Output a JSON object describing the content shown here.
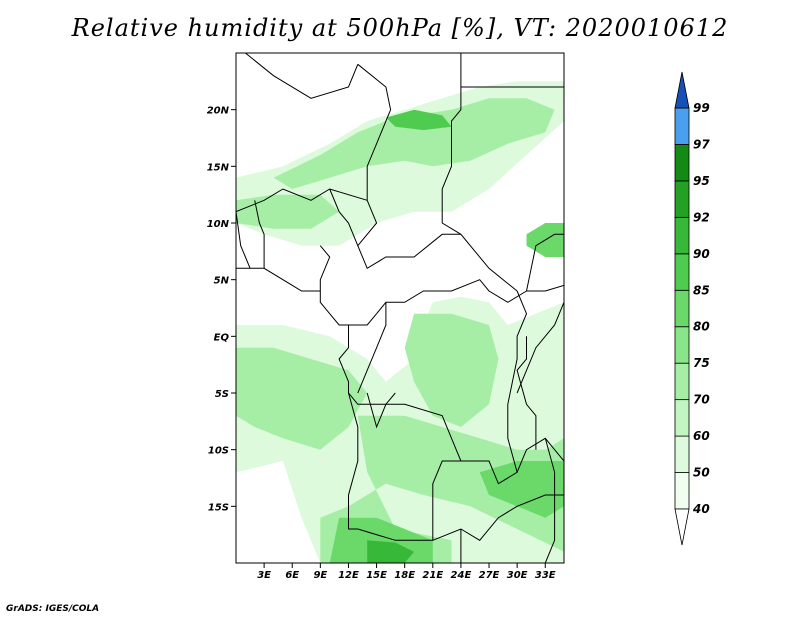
{
  "title": "Relative humidity at 500hPa [%], VT: 2020010612",
  "credit": "GrADS: IGES/COLA",
  "chart_data": {
    "type": "heatmap",
    "title": "Relative humidity at 500hPa [%], VT: 2020010612",
    "x_axis": {
      "range": [
        0,
        35
      ],
      "ticks": [
        3,
        6,
        9,
        12,
        15,
        18,
        21,
        24,
        27,
        30,
        33
      ],
      "tick_labels": [
        "3E",
        "6E",
        "9E",
        "12E",
        "15E",
        "18E",
        "21E",
        "24E",
        "27E",
        "30E",
        "33E"
      ]
    },
    "y_axis": {
      "range": [
        -20,
        25
      ],
      "ticks": [
        20,
        15,
        10,
        5,
        0,
        -5,
        -10,
        -15
      ],
      "tick_labels": [
        "20N",
        "15N",
        "10N",
        "5N",
        "EQ",
        "5S",
        "10S",
        "15S"
      ]
    },
    "colorbar": {
      "levels": [
        40,
        50,
        60,
        70,
        75,
        80,
        85,
        90,
        92,
        95,
        97,
        99
      ],
      "labels": [
        "40",
        "50",
        "60",
        "70",
        "75",
        "80",
        "85",
        "90",
        "92",
        "95",
        "97",
        "99"
      ],
      "colors": [
        "#f0fef0",
        "#ddfadd",
        "#c2f5c2",
        "#a6eea6",
        "#88e688",
        "#6ad96a",
        "#4fcc4f",
        "#38b838",
        "#24a024",
        "#138a13",
        "#4aa0ef",
        "#1e6fd6",
        "#1650b5"
      ],
      "under_color": "#ffffff"
    },
    "regions": [
      {
        "level": 50,
        "points": [
          [
            0,
            14
          ],
          [
            5,
            15
          ],
          [
            10,
            17
          ],
          [
            14,
            19
          ],
          [
            18,
            20
          ],
          [
            22,
            21
          ],
          [
            26,
            22
          ],
          [
            30,
            22.5
          ],
          [
            35,
            22.5
          ],
          [
            35,
            19
          ],
          [
            31,
            16
          ],
          [
            27,
            13
          ],
          [
            23,
            11
          ],
          [
            19,
            11
          ],
          [
            15,
            10
          ],
          [
            11,
            8
          ],
          [
            7,
            8
          ],
          [
            3,
            9
          ],
          [
            0,
            10
          ]
        ]
      },
      {
        "level": 70,
        "points": [
          [
            4,
            14
          ],
          [
            9,
            16
          ],
          [
            13,
            18
          ],
          [
            16,
            19
          ],
          [
            19,
            19.5
          ],
          [
            23,
            20
          ],
          [
            27,
            21
          ],
          [
            31,
            21
          ],
          [
            34,
            20
          ],
          [
            33,
            18
          ],
          [
            29,
            17
          ],
          [
            25,
            15.5
          ],
          [
            21,
            15
          ],
          [
            18,
            15.5
          ],
          [
            14,
            15
          ],
          [
            10,
            14
          ],
          [
            6,
            13
          ]
        ]
      },
      {
        "level": 85,
        "points": [
          [
            16,
            19.3
          ],
          [
            19,
            20
          ],
          [
            22,
            19.5
          ],
          [
            23,
            18.5
          ],
          [
            20,
            18.2
          ],
          [
            17,
            18.5
          ]
        ]
      },
      {
        "level": 70,
        "points": [
          [
            0,
            12
          ],
          [
            4,
            12.5
          ],
          [
            9,
            12.5
          ],
          [
            11,
            11
          ],
          [
            8,
            9.5
          ],
          [
            4,
            9.5
          ],
          [
            0,
            10
          ]
        ]
      },
      {
        "level": 80,
        "points": [
          [
            31,
            9
          ],
          [
            33,
            10
          ],
          [
            35,
            10
          ],
          [
            35,
            7
          ],
          [
            33,
            7
          ],
          [
            31,
            8
          ]
        ]
      },
      {
        "level": 50,
        "points": [
          [
            0,
            1
          ],
          [
            5,
            1
          ],
          [
            10,
            0
          ],
          [
            14,
            -2
          ],
          [
            16,
            -4
          ],
          [
            19,
            -2
          ],
          [
            20,
            1
          ],
          [
            21,
            3
          ],
          [
            24,
            3.5
          ],
          [
            27,
            3
          ],
          [
            29,
            1
          ],
          [
            32,
            2
          ],
          [
            35,
            3
          ],
          [
            35,
            -20
          ],
          [
            9,
            -20
          ],
          [
            7,
            -16
          ],
          [
            5,
            -11
          ],
          [
            0,
            -12
          ]
        ]
      },
      {
        "level": 70,
        "points": [
          [
            0,
            -1
          ],
          [
            4,
            -1
          ],
          [
            8,
            -2
          ],
          [
            12,
            -3
          ],
          [
            14,
            -5
          ],
          [
            12,
            -8
          ],
          [
            9,
            -10
          ],
          [
            5,
            -9
          ],
          [
            2,
            -8
          ],
          [
            0,
            -7
          ]
        ]
      },
      {
        "level": 70,
        "points": [
          [
            19,
            2
          ],
          [
            23,
            2
          ],
          [
            27,
            1
          ],
          [
            28,
            -2
          ],
          [
            27,
            -6
          ],
          [
            24,
            -8
          ],
          [
            21,
            -7
          ],
          [
            19,
            -4
          ],
          [
            18,
            -1
          ]
        ]
      },
      {
        "level": 70,
        "points": [
          [
            13,
            -7
          ],
          [
            18,
            -7
          ],
          [
            22,
            -8
          ],
          [
            26,
            -9
          ],
          [
            30,
            -10
          ],
          [
            33,
            -10
          ],
          [
            35,
            -9
          ],
          [
            35,
            -19
          ],
          [
            30,
            -17
          ],
          [
            25,
            -15
          ],
          [
            20,
            -14
          ],
          [
            16,
            -13
          ],
          [
            12,
            -15
          ],
          [
            9,
            -16
          ],
          [
            9,
            -20
          ],
          [
            23,
            -20
          ],
          [
            23,
            -18
          ],
          [
            17,
            -17
          ],
          [
            14,
            -12
          ]
        ]
      },
      {
        "level": 80,
        "points": [
          [
            26,
            -12
          ],
          [
            30,
            -11
          ],
          [
            33,
            -11
          ],
          [
            35,
            -11
          ],
          [
            35,
            -15
          ],
          [
            33,
            -16
          ],
          [
            30,
            -15
          ],
          [
            27,
            -14
          ]
        ]
      },
      {
        "level": 80,
        "points": [
          [
            11,
            -16
          ],
          [
            15,
            -16
          ],
          [
            18,
            -17
          ],
          [
            21,
            -18
          ],
          [
            21,
            -20
          ],
          [
            10,
            -20
          ]
        ]
      },
      {
        "level": 90,
        "points": [
          [
            14,
            -18
          ],
          [
            17,
            -18.2
          ],
          [
            19,
            -19
          ],
          [
            18,
            -20
          ],
          [
            14,
            -20
          ]
        ]
      }
    ],
    "boundaries": [
      [
        [
          1,
          25
        ],
        [
          4,
          23
        ],
        [
          8,
          21
        ],
        [
          12,
          22
        ],
        [
          13,
          24
        ]
      ],
      [
        [
          13,
          24
        ],
        [
          16,
          22
        ],
        [
          16.5,
          20
        ],
        [
          15,
          17
        ],
        [
          14,
          15
        ],
        [
          14,
          12
        ]
      ],
      [
        [
          24,
          25
        ],
        [
          24,
          20
        ],
        [
          23,
          19
        ],
        [
          23,
          15
        ],
        [
          22,
          13
        ],
        [
          22,
          10
        ],
        [
          24,
          9
        ],
        [
          27,
          6
        ],
        [
          30,
          4
        ]
      ],
      [
        [
          24,
          25
        ],
        [
          35,
          25
        ]
      ],
      [
        [
          24,
          22
        ],
        [
          35,
          22
        ]
      ],
      [
        [
          0,
          11
        ],
        [
          3,
          12
        ],
        [
          5,
          13
        ],
        [
          8,
          12
        ],
        [
          10,
          13
        ],
        [
          14,
          12
        ]
      ],
      [
        [
          14,
          12
        ],
        [
          15,
          10
        ],
        [
          13,
          8
        ],
        [
          14,
          6
        ],
        [
          16,
          7
        ],
        [
          19,
          7
        ],
        [
          22,
          9
        ],
        [
          24,
          9
        ]
      ],
      [
        [
          9,
          8
        ],
        [
          10,
          7
        ],
        [
          9,
          5
        ],
        [
          9,
          3
        ],
        [
          10,
          2
        ],
        [
          11,
          1
        ],
        [
          12,
          1
        ],
        [
          13,
          1
        ],
        [
          14,
          1
        ],
        [
          15,
          2
        ]
      ],
      [
        [
          15,
          2
        ],
        [
          16,
          3
        ],
        [
          18,
          3
        ],
        [
          20,
          4
        ],
        [
          23,
          4
        ],
        [
          26,
          5
        ],
        [
          27,
          4
        ],
        [
          29,
          3
        ],
        [
          31,
          4
        ]
      ],
      [
        [
          12,
          1
        ],
        [
          12,
          -1
        ],
        [
          11,
          -2
        ],
        [
          12,
          -4
        ],
        [
          12,
          -5
        ],
        [
          13,
          -6
        ],
        [
          16,
          -6
        ],
        [
          17,
          -5
        ]
      ],
      [
        [
          16,
          3
        ],
        [
          16,
          1
        ],
        [
          15,
          -1
        ],
        [
          14,
          -3
        ],
        [
          13,
          -5
        ]
      ],
      [
        [
          14,
          -5
        ],
        [
          15,
          -8
        ],
        [
          16,
          -6
        ],
        [
          18,
          -6
        ],
        [
          22,
          -7
        ],
        [
          23,
          -9
        ],
        [
          24,
          -11
        ],
        [
          27,
          -11
        ],
        [
          28,
          -13
        ],
        [
          30,
          -12
        ],
        [
          29,
          -9
        ],
        [
          29,
          -6
        ],
        [
          30,
          -2
        ],
        [
          30,
          0
        ],
        [
          31,
          2
        ],
        [
          30,
          4
        ]
      ],
      [
        [
          12,
          -5
        ],
        [
          13,
          -8
        ],
        [
          13,
          -11
        ],
        [
          12,
          -14
        ],
        [
          12,
          -17
        ],
        [
          13,
          -17
        ],
        [
          17,
          -18
        ],
        [
          21,
          -18
        ],
        [
          21,
          -13
        ],
        [
          22,
          -11
        ],
        [
          24,
          -11
        ]
      ],
      [
        [
          21,
          -18
        ],
        [
          24,
          -17
        ],
        [
          26,
          -18
        ],
        [
          28,
          -16
        ],
        [
          30,
          -15
        ],
        [
          33,
          -14
        ],
        [
          35,
          -14
        ]
      ],
      [
        [
          30,
          -12
        ],
        [
          31,
          -10
        ],
        [
          33,
          -9
        ],
        [
          34,
          -10
        ],
        [
          35,
          -11
        ]
      ],
      [
        [
          30,
          -5
        ],
        [
          32,
          -1
        ],
        [
          34,
          1
        ],
        [
          35,
          3
        ]
      ],
      [
        [
          31,
          0
        ],
        [
          31,
          -2
        ],
        [
          30,
          -3
        ],
        [
          31,
          -6
        ],
        [
          32,
          -7
        ],
        [
          32,
          -10
        ]
      ],
      [
        [
          24,
          -17
        ],
        [
          24,
          -20
        ]
      ],
      [
        [
          33,
          -9
        ],
        [
          34,
          -12
        ],
        [
          34,
          -15
        ],
        [
          34,
          -18
        ],
        [
          33,
          -20
        ]
      ],
      [
        [
          31,
          4
        ],
        [
          33,
          4
        ],
        [
          35,
          4.5
        ]
      ],
      [
        [
          31,
          4
        ],
        [
          32,
          8
        ],
        [
          34,
          9
        ],
        [
          35,
          9
        ]
      ],
      [
        [
          0,
          6
        ],
        [
          3,
          6
        ],
        [
          6,
          4.5
        ],
        [
          7,
          4
        ],
        [
          9,
          4
        ]
      ],
      [
        [
          0,
          11
        ],
        [
          0.5,
          8
        ],
        [
          1,
          7
        ],
        [
          1.5,
          6
        ]
      ],
      [
        [
          2,
          12
        ],
        [
          2.5,
          10
        ],
        [
          3,
          9
        ],
        [
          3,
          6
        ]
      ],
      [
        [
          10,
          13
        ],
        [
          11,
          11
        ],
        [
          12,
          10
        ],
        [
          13,
          8
        ]
      ]
    ]
  }
}
